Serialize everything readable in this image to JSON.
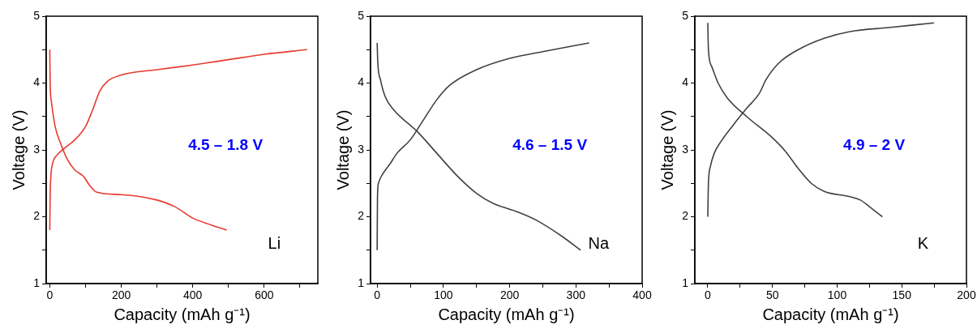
{
  "chart_data": [
    {
      "type": "line",
      "xlabel": "Capacity (mAh g⁻¹)",
      "ylabel": "Voltage (V)",
      "annotations": [
        "4.5 – 1.8 V",
        "Li"
      ],
      "xlim": [
        -10,
        750
      ],
      "ylim": [
        1,
        5
      ],
      "xticks": [
        0,
        {
          "value": 100,
          "label": null
        },
        200,
        {
          "value": 300,
          "label": null
        },
        400,
        {
          "value": 500,
          "label": null
        },
        600,
        {
          "value": 700,
          "label": null
        }
      ],
      "yticks": [
        1,
        {
          "value": 1.5,
          "label": null
        },
        2,
        {
          "value": 2.5,
          "label": null
        },
        3,
        {
          "value": 3.5,
          "label": null
        },
        4,
        {
          "value": 4.5,
          "label": null
        },
        5
      ],
      "grid": false,
      "legend": false,
      "marker": "none",
      "line_style": "solid",
      "series": [
        {
          "color": "#e8392f",
          "x": [
            0,
            1,
            3,
            8,
            20,
            40,
            70,
            100,
            120,
            140,
            160,
            200,
            300,
            400,
            500,
            600,
            720
          ],
          "values": [
            1.8,
            2.3,
            2.6,
            2.8,
            2.92,
            3.02,
            3.15,
            3.35,
            3.6,
            3.88,
            4.02,
            4.12,
            4.2,
            4.27,
            4.35,
            4.43,
            4.5
          ]
        },
        {
          "color": "#e8392f",
          "x": [
            0,
            1,
            5,
            15,
            30,
            50,
            70,
            95,
            110,
            130,
            200,
            300,
            350,
            400,
            450,
            495
          ],
          "values": [
            4.5,
            4.0,
            3.7,
            3.35,
            3.1,
            2.85,
            2.7,
            2.6,
            2.48,
            2.37,
            2.33,
            2.25,
            2.15,
            1.98,
            1.88,
            1.8
          ]
        }
      ]
    },
    {
      "type": "line",
      "xlabel": "Capacity (mAh g⁻¹)",
      "ylabel": "Voltage (V)",
      "annotations": [
        "4.6 – 1.5 V",
        "Na"
      ],
      "xlim": [
        -10,
        400
      ],
      "ylim": [
        1,
        5
      ],
      "xticks": [
        0,
        {
          "value": 50,
          "label": null
        },
        100,
        {
          "value": 150,
          "label": null
        },
        200,
        {
          "value": 250,
          "label": null
        },
        300,
        {
          "value": 350,
          "label": null
        },
        400
      ],
      "yticks": [
        1,
        {
          "value": 1.5,
          "label": null
        },
        2,
        {
          "value": 2.5,
          "label": null
        },
        3,
        {
          "value": 3.5,
          "label": null
        },
        4,
        {
          "value": 4.5,
          "label": null
        },
        5
      ],
      "grid": false,
      "legend": false,
      "marker": "none",
      "line_style": "solid",
      "series": [
        {
          "color": "#404040",
          "x": [
            0,
            0.5,
            2,
            6,
            20,
            30,
            50,
            70,
            90,
            110,
            150,
            200,
            250,
            320
          ],
          "values": [
            1.5,
            2.3,
            2.5,
            2.6,
            2.8,
            2.95,
            3.15,
            3.45,
            3.75,
            3.97,
            4.2,
            4.37,
            4.47,
            4.6
          ]
        },
        {
          "color": "#404040",
          "x": [
            0,
            1,
            5,
            12,
            25,
            60,
            90,
            120,
            150,
            175,
            210,
            240,
            280,
            307
          ],
          "values": [
            4.6,
            4.3,
            4.05,
            3.8,
            3.6,
            3.28,
            2.95,
            2.62,
            2.35,
            2.2,
            2.08,
            1.95,
            1.7,
            1.5
          ]
        }
      ]
    },
    {
      "type": "line",
      "xlabel": "Capacity (mAh g⁻¹)",
      "ylabel": "Voltage (V)",
      "annotations": [
        "4.9 – 2 V",
        "K"
      ],
      "xlim": [
        -10,
        200
      ],
      "ylim": [
        1,
        5
      ],
      "xticks": [
        0,
        {
          "value": 25,
          "label": null
        },
        50,
        {
          "value": 75,
          "label": null
        },
        100,
        {
          "value": 125,
          "label": null
        },
        150,
        {
          "value": 175,
          "label": null
        },
        200
      ],
      "yticks": [
        1,
        {
          "value": 1.5,
          "label": null
        },
        2,
        {
          "value": 2.5,
          "label": null
        },
        3,
        {
          "value": 3.5,
          "label": null
        },
        4,
        {
          "value": 4.5,
          "label": null
        },
        5
      ],
      "grid": false,
      "legend": false,
      "marker": "none",
      "line_style": "solid",
      "series": [
        {
          "color": "#404040",
          "x": [
            0,
            0.5,
            2,
            5,
            10,
            20,
            30,
            40,
            45,
            55,
            70,
            90,
            110,
            140,
            175
          ],
          "values": [
            2,
            2.5,
            2.75,
            2.95,
            3.12,
            3.38,
            3.62,
            3.85,
            4.05,
            4.3,
            4.5,
            4.67,
            4.77,
            4.83,
            4.9
          ]
        },
        {
          "color": "#404040",
          "x": [
            0,
            0.5,
            3,
            8,
            15,
            30,
            50,
            60,
            70,
            80,
            90,
            110,
            118,
            125,
            135
          ],
          "values": [
            4.9,
            4.5,
            4.25,
            4.0,
            3.78,
            3.5,
            3.18,
            2.98,
            2.72,
            2.5,
            2.38,
            2.3,
            2.25,
            2.15,
            2.0
          ]
        }
      ]
    }
  ]
}
